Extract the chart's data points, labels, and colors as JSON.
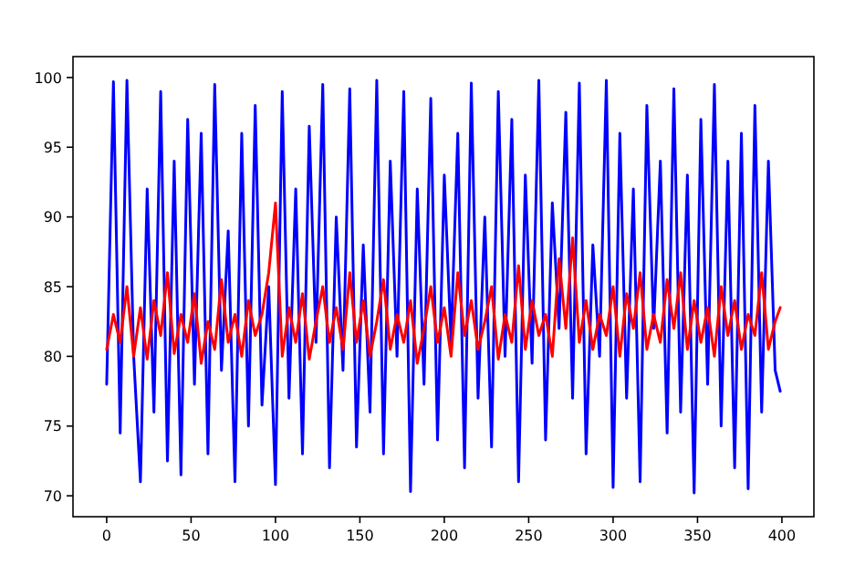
{
  "chart_data": {
    "type": "line",
    "xlim": [
      -19.95,
      418.95
    ],
    "ylim": [
      68.5,
      101.5
    ],
    "xticks": [
      0,
      50,
      100,
      150,
      200,
      250,
      300,
      350,
      400
    ],
    "yticks": [
      70,
      75,
      80,
      85,
      90,
      95,
      100
    ],
    "series": [
      {
        "color": "#0000ff",
        "x": [
          0,
          4,
          8,
          12,
          16,
          20,
          24,
          28,
          32,
          36,
          40,
          44,
          48,
          52,
          56,
          60,
          64,
          68,
          72,
          76,
          80,
          84,
          88,
          92,
          96,
          100,
          104,
          108,
          112,
          116,
          120,
          124,
          128,
          132,
          136,
          140,
          144,
          148,
          152,
          156,
          160,
          164,
          168,
          172,
          176,
          180,
          184,
          188,
          192,
          196,
          200,
          204,
          208,
          212,
          216,
          220,
          224,
          228,
          232,
          236,
          240,
          244,
          248,
          252,
          256,
          260,
          264,
          268,
          272,
          276,
          280,
          284,
          288,
          292,
          296,
          300,
          304,
          308,
          312,
          316,
          320,
          324,
          328,
          332,
          336,
          340,
          344,
          348,
          352,
          356,
          360,
          364,
          368,
          372,
          376,
          380,
          384,
          388,
          392,
          396,
          399
        ],
        "values": [
          78,
          99.7,
          74.5,
          99.8,
          80,
          71,
          92,
          76,
          99,
          72.5,
          94,
          71.5,
          97,
          78,
          96,
          73,
          99.5,
          79,
          89,
          71,
          96,
          75,
          98,
          76.5,
          85,
          70.8,
          99,
          77,
          92,
          73,
          96.5,
          81,
          99.5,
          72,
          90,
          79,
          99.2,
          73.5,
          88,
          76,
          99.8,
          73,
          94,
          80,
          99,
          70.3,
          92,
          78,
          98.5,
          74,
          93,
          81,
          96,
          72,
          99.6,
          77,
          90,
          73.5,
          99,
          80,
          97,
          71,
          93,
          79.5,
          99.8,
          74,
          91,
          82,
          97.5,
          77,
          99.6,
          73,
          88,
          80,
          99.8,
          70.6,
          96,
          77,
          92,
          71,
          98,
          82,
          94,
          74.5,
          99.2,
          76,
          93,
          70.2,
          97,
          78,
          99.5,
          75,
          94,
          72,
          96,
          70.5,
          98,
          76,
          94,
          79,
          77.5
        ]
      },
      {
        "color": "#ff0000",
        "x": [
          0,
          4,
          8,
          12,
          16,
          20,
          24,
          28,
          32,
          36,
          40,
          44,
          48,
          52,
          56,
          60,
          64,
          68,
          72,
          76,
          80,
          84,
          88,
          92,
          96,
          100,
          104,
          108,
          112,
          116,
          120,
          124,
          128,
          132,
          136,
          140,
          144,
          148,
          152,
          156,
          160,
          164,
          168,
          172,
          176,
          180,
          184,
          188,
          192,
          196,
          200,
          204,
          208,
          212,
          216,
          220,
          224,
          228,
          232,
          236,
          240,
          244,
          248,
          252,
          256,
          260,
          264,
          268,
          272,
          276,
          280,
          284,
          288,
          292,
          296,
          300,
          304,
          308,
          312,
          316,
          320,
          324,
          328,
          332,
          336,
          340,
          344,
          348,
          352,
          356,
          360,
          364,
          368,
          372,
          376,
          380,
          384,
          388,
          392,
          396,
          399
        ],
        "values": [
          80.5,
          83,
          81,
          85,
          80,
          83.5,
          79.8,
          84,
          81.5,
          86,
          80.2,
          83,
          81,
          84.5,
          79.5,
          82.5,
          80.5,
          85.5,
          81,
          83,
          80,
          84,
          81.5,
          83,
          86,
          91,
          80,
          83.5,
          81,
          84.5,
          79.8,
          82.5,
          85,
          81,
          83.5,
          80.5,
          86,
          81,
          84,
          80,
          82.5,
          85.5,
          80.5,
          83,
          81,
          84,
          79.5,
          82,
          85,
          81,
          83.5,
          80,
          86,
          81.5,
          84,
          80.5,
          82.5,
          85,
          79.8,
          83,
          81,
          86.5,
          80.5,
          84,
          81.5,
          83,
          80,
          87,
          82,
          88.5,
          81,
          84,
          80.5,
          83,
          81.5,
          85,
          80,
          84.5,
          82,
          86,
          80.5,
          83,
          81,
          85.5,
          82,
          86,
          80.5,
          84,
          81,
          83.5,
          80,
          85,
          81.5,
          84,
          80.5,
          83,
          81.5,
          86,
          80.5,
          82.5,
          83.5
        ]
      }
    ]
  }
}
